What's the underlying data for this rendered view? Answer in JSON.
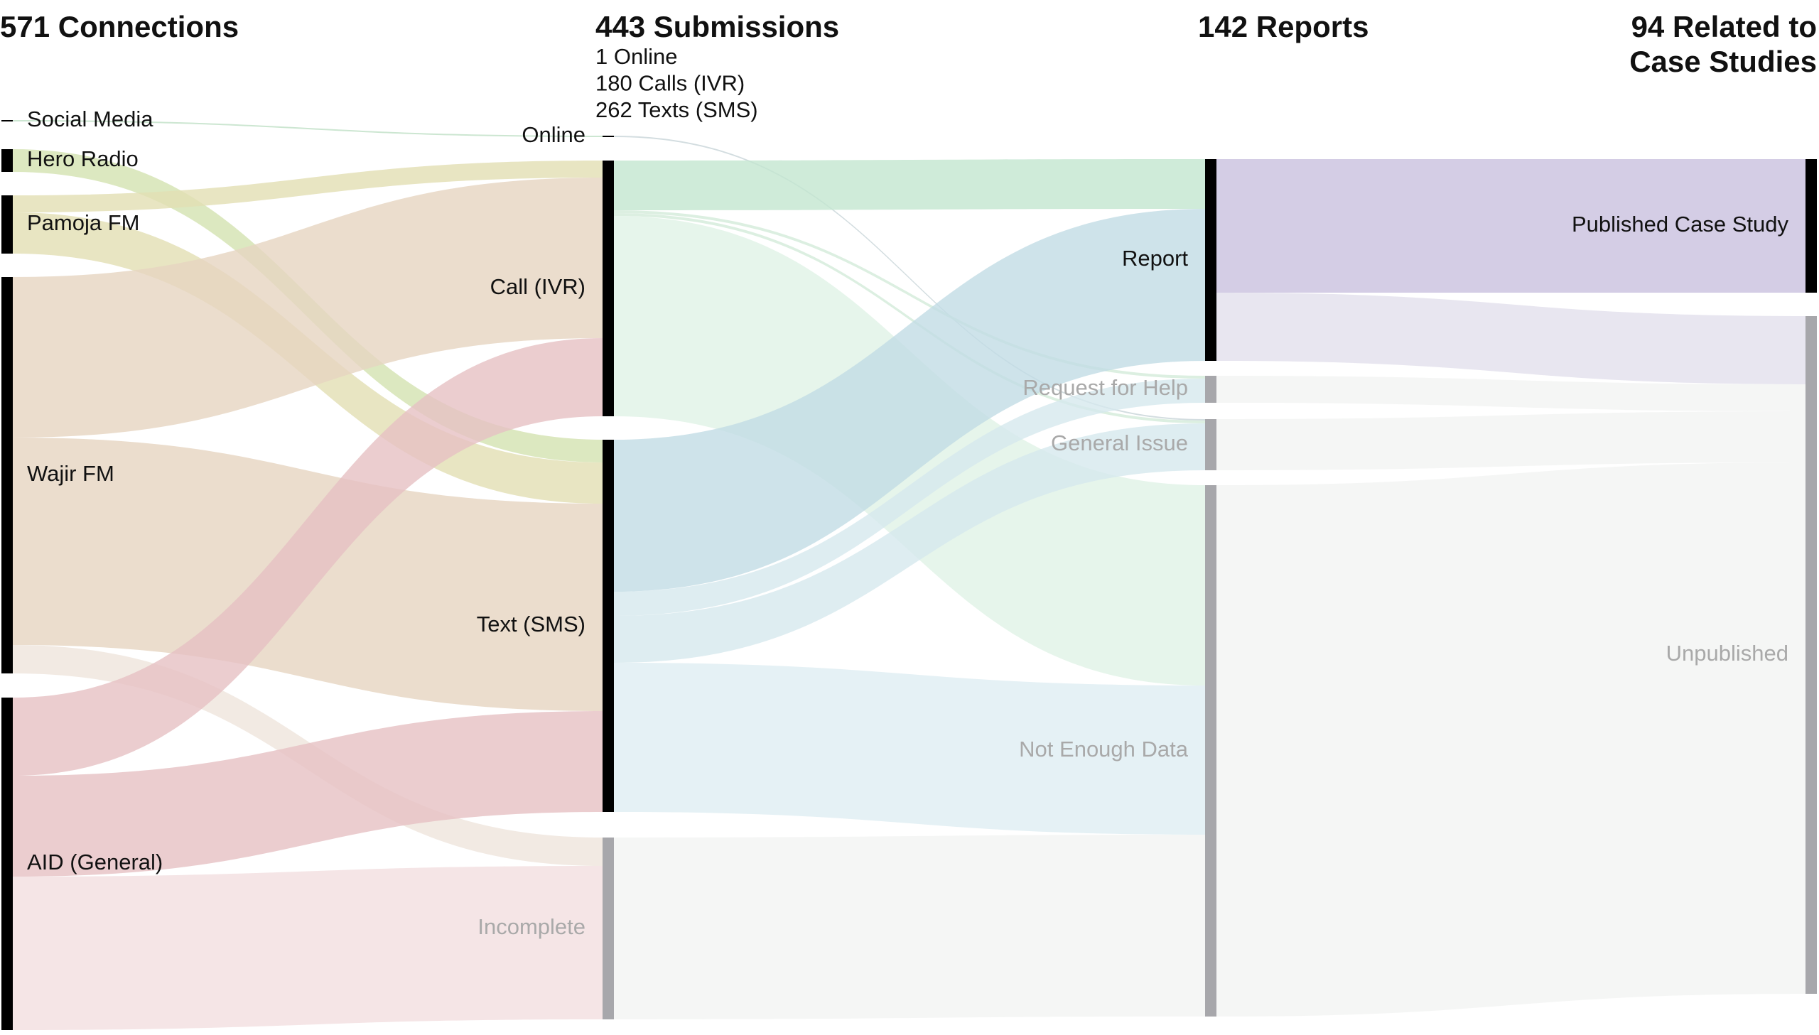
{
  "chart_data": {
    "type": "sankey",
    "columns": [
      {
        "title": [
          "571 Connections"
        ]
      },
      {
        "title": [
          "443 Submissions"
        ],
        "subtitle": [
          "1 Online",
          "180 Calls (IVR)",
          "262 Texts (SMS)"
        ]
      },
      {
        "title": [
          "142 Reports"
        ]
      },
      {
        "title": [
          "94 Related to",
          "Case Studies"
        ]
      }
    ],
    "nodes": [
      {
        "name": "Social Media",
        "column": 0,
        "color": "#000000",
        "label_color": "#111111"
      },
      {
        "name": "Hero Radio",
        "column": 0,
        "color": "#000000",
        "label_color": "#111111"
      },
      {
        "name": "Pamoja FM",
        "column": 0,
        "color": "#000000",
        "label_color": "#111111"
      },
      {
        "name": "Wajir FM",
        "column": 0,
        "color": "#000000",
        "label_color": "#111111"
      },
      {
        "name": "AID (General)",
        "column": 0,
        "color": "#000000",
        "label_color": "#111111"
      },
      {
        "name": "Online",
        "column": 1,
        "color": "#000000",
        "label_color": "#111111"
      },
      {
        "name": "Call (IVR)",
        "column": 1,
        "color": "#000000",
        "label_color": "#111111"
      },
      {
        "name": "Text (SMS)",
        "column": 1,
        "color": "#000000",
        "label_color": "#111111"
      },
      {
        "name": "Incomplete",
        "column": 1,
        "color": "#a7a7ab",
        "label_color": "#a9a9a9"
      },
      {
        "name": "Report",
        "column": 2,
        "color": "#000000",
        "label_color": "#111111"
      },
      {
        "name": "Request for Help",
        "column": 2,
        "color": "#a7a7ab",
        "label_color": "#a9a9a9"
      },
      {
        "name": "General Issue",
        "column": 2,
        "color": "#a7a7ab",
        "label_color": "#a9a9a9"
      },
      {
        "name": "Not Enough Data",
        "column": 2,
        "color": "#a7a7ab",
        "label_color": "#a9a9a9"
      },
      {
        "name": "Published Case Study",
        "column": 3,
        "color": "#000000",
        "label_color": "#111111"
      },
      {
        "name": "Unpublished",
        "column": 3,
        "color": "#a7a7ab",
        "label_color": "#a9a9a9"
      }
    ],
    "links": [
      {
        "source": "Social Media",
        "target": "Online",
        "value": 1,
        "color": "#bfe0c6"
      },
      {
        "source": "Hero Radio",
        "target": "Text (SMS)",
        "value": 16,
        "color": "#d3e2b0"
      },
      {
        "source": "Pamoja FM",
        "target": "Call (IVR)",
        "value": 12,
        "color": "#e2deb3"
      },
      {
        "source": "Pamoja FM",
        "target": "Text (SMS)",
        "value": 29,
        "color": "#e2deb3"
      },
      {
        "source": "Wajir FM",
        "target": "Call (IVR)",
        "value": 113,
        "color": "#e6d5c1"
      },
      {
        "source": "Wajir FM",
        "target": "Text (SMS)",
        "value": 146,
        "color": "#e6d5c1"
      },
      {
        "source": "Wajir FM",
        "target": "Incomplete",
        "value": 20,
        "color": "#efe5dc"
      },
      {
        "source": "AID (General)",
        "target": "Call (IVR)",
        "value": 55,
        "color": "#e6c0c3"
      },
      {
        "source": "AID (General)",
        "target": "Text (SMS)",
        "value": 71,
        "color": "#e6c0c3"
      },
      {
        "source": "AID (General)",
        "target": "Incomplete",
        "value": 108,
        "color": "#f2dfe0"
      },
      {
        "source": "Online",
        "target": "General Issue",
        "value": 1,
        "color": "#c8d4d8"
      },
      {
        "source": "Call (IVR)",
        "target": "Report",
        "value": 35,
        "color": "#c3e6cf"
      },
      {
        "source": "Call (IVR)",
        "target": "Request for Help",
        "value": 2,
        "color": "#d3ebd9"
      },
      {
        "source": "Call (IVR)",
        "target": "General Issue",
        "value": 2,
        "color": "#d3ebd9"
      },
      {
        "source": "Call (IVR)",
        "target": "Not Enough Data",
        "value": 141,
        "color": "#e0f2e6"
      },
      {
        "source": "Text (SMS)",
        "target": "Report",
        "value": 107,
        "color": "#c2dce5"
      },
      {
        "source": "Text (SMS)",
        "target": "Request for Help",
        "value": 17,
        "color": "#d6e8ee"
      },
      {
        "source": "Text (SMS)",
        "target": "General Issue",
        "value": 33,
        "color": "#d6e8ee"
      },
      {
        "source": "Text (SMS)",
        "target": "Not Enough Data",
        "value": 105,
        "color": "#dfedf2"
      },
      {
        "source": "Incomplete",
        "target": "Not Enough Data",
        "value": 128,
        "color": "#f2f4f3"
      },
      {
        "source": "Report",
        "target": "Published Case Study",
        "value": 94,
        "color": "#c9c1df"
      },
      {
        "source": "Report",
        "target": "Unpublished",
        "value": 48,
        "color": "#e2e0ec"
      },
      {
        "source": "Request for Help",
        "target": "Unpublished",
        "value": 19,
        "color": "#f2f4f3"
      },
      {
        "source": "General Issue",
        "target": "Unpublished",
        "value": 36,
        "color": "#f2f4f3"
      },
      {
        "source": "Not Enough Data",
        "target": "Unpublished",
        "value": 374,
        "color": "#f2f4f3"
      }
    ]
  }
}
